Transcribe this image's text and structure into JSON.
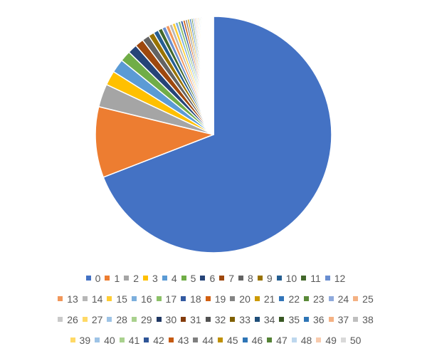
{
  "chart_data": {
    "type": "pie",
    "title": "",
    "categories": [
      "0",
      "1",
      "2",
      "3",
      "4",
      "5",
      "6",
      "7",
      "8",
      "9",
      "10",
      "11",
      "12",
      "13",
      "14",
      "15",
      "16",
      "17",
      "18",
      "19",
      "20",
      "21",
      "22",
      "23",
      "24",
      "25",
      "26",
      "27",
      "28",
      "29",
      "30",
      "31",
      "32",
      "33",
      "34",
      "35",
      "36",
      "37",
      "38",
      "39",
      "40",
      "41",
      "42",
      "43",
      "44",
      "45",
      "46",
      "47",
      "48",
      "49",
      "50"
    ],
    "values": [
      70.0,
      9.8,
      3.2,
      2.0,
      1.9,
      1.5,
      1.3,
      1.2,
      1.0,
      0.8,
      0.7,
      0.6,
      0.55,
      0.5,
      0.45,
      0.42,
      0.4,
      0.37,
      0.34,
      0.32,
      0.3,
      0.28,
      0.26,
      0.24,
      0.22,
      0.2,
      0.19,
      0.18,
      0.17,
      0.16,
      0.15,
      0.14,
      0.13,
      0.12,
      0.11,
      0.1,
      0.1,
      0.09,
      0.09,
      0.08,
      0.08,
      0.07,
      0.07,
      0.06,
      0.06,
      0.05,
      0.05,
      0.05,
      0.04,
      0.04,
      0.04
    ],
    "colors": [
      "#4472C4",
      "#ED7D31",
      "#A5A5A5",
      "#FFC000",
      "#5B9BD5",
      "#70AD47",
      "#264478",
      "#9E480E",
      "#636363",
      "#997300",
      "#255E91",
      "#43682B",
      "#698ED0",
      "#F1975A",
      "#B7B7B7",
      "#FFCD33",
      "#7CAFDD",
      "#8CC168",
      "#335AA1",
      "#D26012",
      "#848484",
      "#CC9A00",
      "#3275B9",
      "#5A8A39",
      "#8FAADC",
      "#F4B183",
      "#C9C9C9",
      "#FFD966",
      "#9DC3E6",
      "#A9D18E",
      "#203864",
      "#843C0C",
      "#525252",
      "#7F6000",
      "#1F4E79",
      "#385723",
      "#2E75B6",
      "#F4B183",
      "#BFBFBF",
      "#FFD966",
      "#9DC3E6",
      "#A9D18E",
      "#2F5597",
      "#C55A11",
      "#7F7F7F",
      "#BF9000",
      "#2E75B6",
      "#548235",
      "#BDD7EE",
      "#F8CBAD",
      "#D9D9D9"
    ],
    "legend_position": "bottom"
  }
}
